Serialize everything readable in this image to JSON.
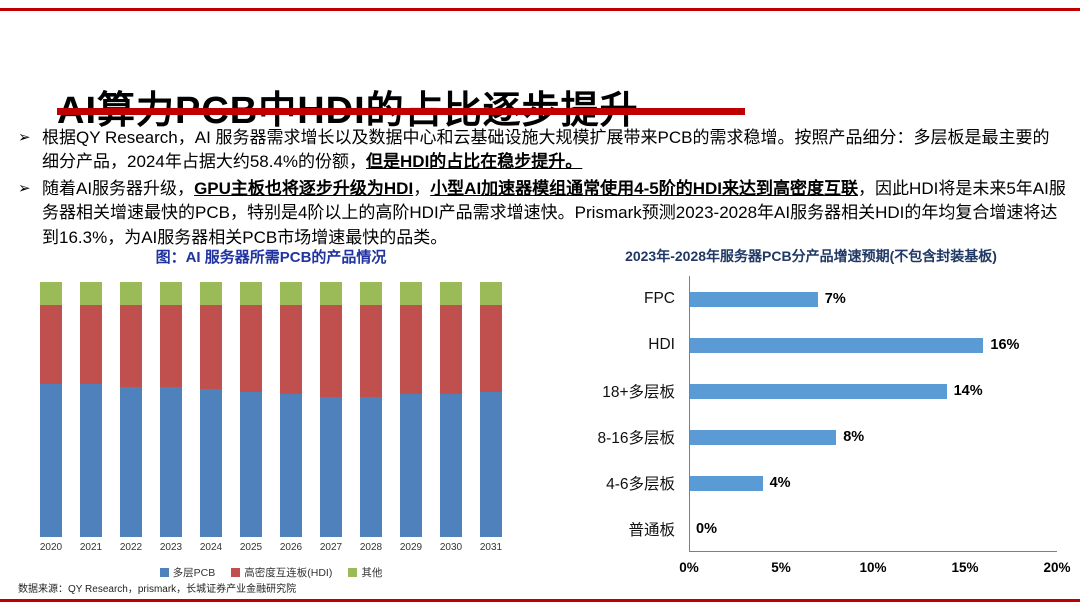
{
  "page": {
    "title": "AI算力PCB中HDI的占比逐步提升",
    "bullet_marker": "➢",
    "footer": "数据来源：QY Research，prismark，长城证券产业金融研究院"
  },
  "colors": {
    "accent_red": "#c00000",
    "multilayer_blue": "#4f81bd",
    "hdi_red": "#c0504d",
    "other_green": "#9bbb59",
    "hbar_blue": "#5b9bd5",
    "left_title_blue": "#2033a0",
    "right_title_navy": "#1f3864"
  },
  "bullets": [
    {
      "segments": [
        {
          "style": "normal",
          "text": "根据QY Research，AI 服务器需求增长以及数据中心和云基础设施大规模扩展带来PCB的需求稳增。按照产品细分：多层板是最主要的细分产品，2024年占据大约58.4%的份额，"
        },
        {
          "style": "bold-underline",
          "text": "但是HDI的占比在稳步提升。"
        }
      ]
    },
    {
      "segments": [
        {
          "style": "normal",
          "text": "随着AI服务器升级，"
        },
        {
          "style": "bold-underline",
          "text": "GPU主板也将逐步升级为HDI"
        },
        {
          "style": "normal",
          "text": "，"
        },
        {
          "style": "bold-underline",
          "text": "小型AI加速器模组通常使用4-5阶的HDI来达到高密度互联"
        },
        {
          "style": "normal",
          "text": "，因此HDI将是未来5年AI服务器相关增速最快的PCB，特别是4阶以上的高阶HDI产品需求增速快。Prismark预测2023-2028年AI服务器相关HDI的年均复合增速将达到16.3%，为AI服务器相关PCB市场增速最快的品类。"
        }
      ]
    }
  ],
  "chart_data": [
    {
      "type": "bar",
      "subtype": "stacked-100",
      "title": "图：AI 服务器所需PCB的产品情况",
      "categories": [
        "2020",
        "2021",
        "2022",
        "2023",
        "2024",
        "2025",
        "2026",
        "2027",
        "2028",
        "2029",
        "2030",
        "2031"
      ],
      "series": [
        {
          "name": "多层PCB",
          "color": "#4f81bd",
          "values": [
            60,
            60,
            59,
            59,
            58,
            57,
            56,
            55,
            55,
            56,
            56,
            57
          ]
        },
        {
          "name": "高密度互连板(HDI)",
          "color": "#c0504d",
          "values": [
            31,
            31,
            32,
            32,
            33,
            34,
            35,
            36,
            36,
            35,
            35,
            34
          ]
        },
        {
          "name": "其他",
          "color": "#9bbb59",
          "values": [
            9,
            9,
            9,
            9,
            9,
            9,
            9,
            9,
            9,
            9,
            9,
            9
          ]
        }
      ],
      "ylim": [
        0,
        100
      ],
      "legend_position": "bottom",
      "grid": false
    },
    {
      "type": "bar",
      "subtype": "horizontal",
      "title": "2023年-2028年服务器PCB分产品增速预期(不包含封装基板)",
      "categories": [
        "FPC",
        "HDI",
        "18+多层板",
        "8-16多层板",
        "4-6多层板",
        "普通板"
      ],
      "values": [
        7,
        16,
        14,
        8,
        4,
        0
      ],
      "value_labels": [
        "7%",
        "16%",
        "14%",
        "8%",
        "4%",
        "0%"
      ],
      "bar_color": "#5b9bd5",
      "xlim": [
        0,
        20
      ],
      "xticks": [
        "0%",
        "5%",
        "10%",
        "15%",
        "20%"
      ],
      "grid": false
    }
  ]
}
